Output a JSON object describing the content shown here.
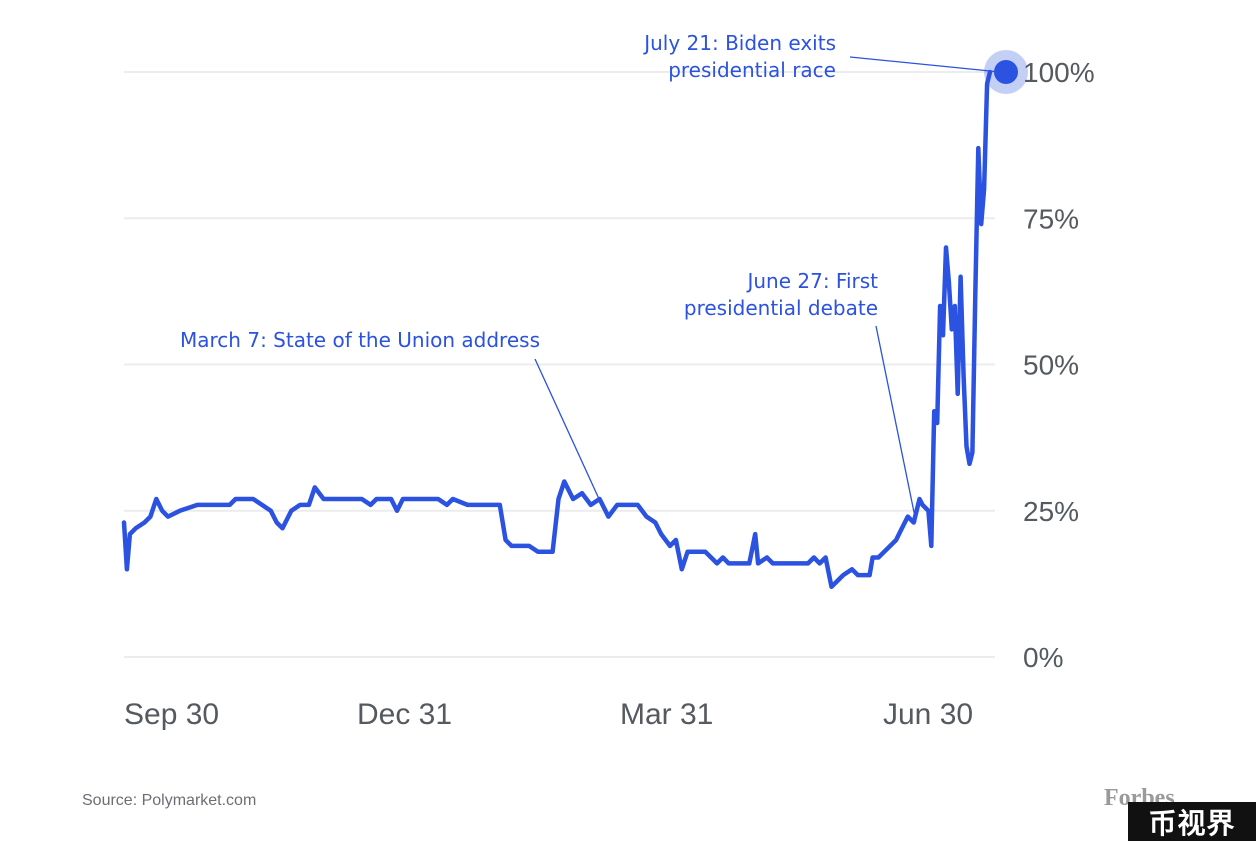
{
  "chart_data": {
    "type": "line",
    "title": "",
    "xlabel": "",
    "ylabel": "",
    "x_tick_labels": [
      "Sep 30",
      "Dec 31",
      "Mar 31",
      "Jun 30"
    ],
    "y_tick_labels": [
      "100%",
      "75%",
      "50%",
      "25%",
      "0%"
    ],
    "y_ticks": [
      100,
      75,
      50,
      25,
      0
    ],
    "ylim": [
      0,
      100
    ],
    "xlim": [
      "2023-09-30",
      "2024-07-21"
    ],
    "grid": true,
    "legend": "none",
    "series": [
      {
        "color": "#2b52e0",
        "points": [
          [
            "2023-09-30",
            23
          ],
          [
            "2023-10-01",
            15
          ],
          [
            "2023-10-02",
            21
          ],
          [
            "2023-10-04",
            22
          ],
          [
            "2023-10-07",
            23
          ],
          [
            "2023-10-09",
            24
          ],
          [
            "2023-10-11",
            27
          ],
          [
            "2023-10-13",
            25
          ],
          [
            "2023-10-15",
            24
          ],
          [
            "2023-10-19",
            25
          ],
          [
            "2023-10-25",
            26
          ],
          [
            "2023-11-05",
            26
          ],
          [
            "2023-11-07",
            27
          ],
          [
            "2023-11-13",
            27
          ],
          [
            "2023-11-16",
            26
          ],
          [
            "2023-11-19",
            25
          ],
          [
            "2023-11-21",
            23
          ],
          [
            "2023-11-23",
            22
          ],
          [
            "2023-11-26",
            25
          ],
          [
            "2023-11-29",
            26
          ],
          [
            "2023-12-02",
            26
          ],
          [
            "2023-12-04",
            29
          ],
          [
            "2023-12-07",
            27
          ],
          [
            "2023-12-12",
            27
          ],
          [
            "2023-12-20",
            27
          ],
          [
            "2023-12-23",
            26
          ],
          [
            "2023-12-25",
            27
          ],
          [
            "2023-12-30",
            27
          ],
          [
            "2024-01-01",
            25
          ],
          [
            "2024-01-03",
            27
          ],
          [
            "2024-01-10",
            27
          ],
          [
            "2024-01-15",
            27
          ],
          [
            "2024-01-18",
            26
          ],
          [
            "2024-01-20",
            27
          ],
          [
            "2024-01-25",
            26
          ],
          [
            "2024-02-01",
            26
          ],
          [
            "2024-02-05",
            26
          ],
          [
            "2024-02-07",
            20
          ],
          [
            "2024-02-09",
            19
          ],
          [
            "2024-02-15",
            19
          ],
          [
            "2024-02-18",
            18
          ],
          [
            "2024-02-23",
            18
          ],
          [
            "2024-02-25",
            27
          ],
          [
            "2024-02-27",
            30
          ],
          [
            "2024-03-01",
            27
          ],
          [
            "2024-03-04",
            28
          ],
          [
            "2024-03-07",
            26
          ],
          [
            "2024-03-10",
            27
          ],
          [
            "2024-03-13",
            24
          ],
          [
            "2024-03-16",
            26
          ],
          [
            "2024-03-19",
            26
          ],
          [
            "2024-03-23",
            26
          ],
          [
            "2024-03-26",
            24
          ],
          [
            "2024-03-29",
            23
          ],
          [
            "2024-03-31",
            21
          ],
          [
            "2024-04-03",
            19
          ],
          [
            "2024-04-05",
            20
          ],
          [
            "2024-04-07",
            15
          ],
          [
            "2024-04-09",
            18
          ],
          [
            "2024-04-13",
            18
          ],
          [
            "2024-04-15",
            18
          ],
          [
            "2024-04-17",
            17
          ],
          [
            "2024-04-19",
            16
          ],
          [
            "2024-04-21",
            17
          ],
          [
            "2024-04-23",
            16
          ],
          [
            "2024-04-27",
            16
          ],
          [
            "2024-04-30",
            16
          ],
          [
            "2024-05-02",
            21
          ],
          [
            "2024-05-03",
            16
          ],
          [
            "2024-05-06",
            17
          ],
          [
            "2024-05-08",
            16
          ],
          [
            "2024-05-15",
            16
          ],
          [
            "2024-05-20",
            16
          ],
          [
            "2024-05-22",
            17
          ],
          [
            "2024-05-24",
            16
          ],
          [
            "2024-05-26",
            17
          ],
          [
            "2024-05-28",
            12
          ],
          [
            "2024-05-30",
            13
          ],
          [
            "2024-06-01",
            14
          ],
          [
            "2024-06-04",
            15
          ],
          [
            "2024-06-06",
            14
          ],
          [
            "2024-06-08",
            14
          ],
          [
            "2024-06-10",
            14
          ],
          [
            "2024-06-11",
            17
          ],
          [
            "2024-06-13",
            17
          ],
          [
            "2024-06-15",
            18
          ],
          [
            "2024-06-17",
            19
          ],
          [
            "2024-06-19",
            20
          ],
          [
            "2024-06-21",
            22
          ],
          [
            "2024-06-23",
            24
          ],
          [
            "2024-06-25",
            23
          ],
          [
            "2024-06-27",
            27
          ],
          [
            "2024-06-28",
            26
          ],
          [
            "2024-06-30",
            25
          ],
          [
            "2024-07-01",
            19
          ],
          [
            "2024-07-02",
            42
          ],
          [
            "2024-07-03",
            40
          ],
          [
            "2024-07-04",
            60
          ],
          [
            "2024-07-05",
            55
          ],
          [
            "2024-07-06",
            70
          ],
          [
            "2024-07-07",
            64
          ],
          [
            "2024-07-08",
            56
          ],
          [
            "2024-07-09",
            60
          ],
          [
            "2024-07-10",
            45
          ],
          [
            "2024-07-11",
            65
          ],
          [
            "2024-07-12",
            48
          ],
          [
            "2024-07-13",
            36
          ],
          [
            "2024-07-14",
            33
          ],
          [
            "2024-07-15",
            35
          ],
          [
            "2024-07-16",
            62
          ],
          [
            "2024-07-17",
            87
          ],
          [
            "2024-07-18",
            74
          ],
          [
            "2024-07-19",
            80
          ],
          [
            "2024-07-20",
            98
          ],
          [
            "2024-07-21",
            100
          ]
        ],
        "highlight_point": [
          "2024-07-21",
          100
        ]
      }
    ],
    "annotations": [
      {
        "lines": [
          "July 21: Biden exits",
          "presidential race"
        ],
        "date": "2024-07-21",
        "value": 100
      },
      {
        "lines": [
          "June 27: First",
          "presidential debate"
        ],
        "date": "2024-06-27",
        "value": 25
      },
      {
        "lines": [
          "March 7: State of the Union address"
        ],
        "date": "2024-03-07",
        "value": 26
      }
    ],
    "source": "Source: Polymarket.com"
  },
  "branding": {
    "publisher": "Forbes",
    "watermark": "币视界"
  }
}
